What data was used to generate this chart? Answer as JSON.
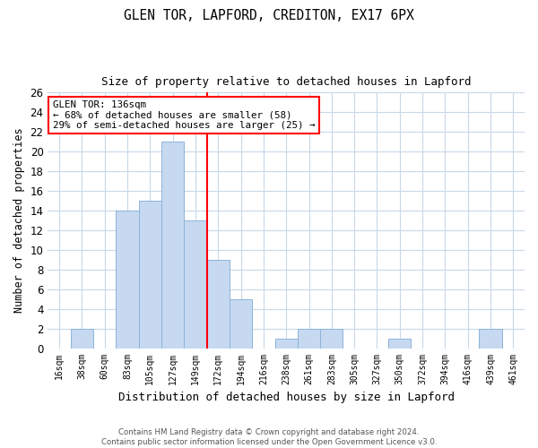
{
  "title1": "GLEN TOR, LAPFORD, CREDITON, EX17 6PX",
  "title2": "Size of property relative to detached houses in Lapford",
  "xlabel": "Distribution of detached houses by size in Lapford",
  "ylabel": "Number of detached properties",
  "bins": [
    "16sqm",
    "38sqm",
    "60sqm",
    "83sqm",
    "105sqm",
    "127sqm",
    "149sqm",
    "172sqm",
    "194sqm",
    "216sqm",
    "238sqm",
    "261sqm",
    "283sqm",
    "305sqm",
    "327sqm",
    "350sqm",
    "372sqm",
    "394sqm",
    "416sqm",
    "439sqm",
    "461sqm"
  ],
  "values": [
    0,
    2,
    0,
    14,
    15,
    21,
    13,
    9,
    5,
    0,
    1,
    2,
    2,
    0,
    0,
    1,
    0,
    0,
    0,
    2,
    0
  ],
  "bar_color": "#c6d9f1",
  "bar_edgecolor": "#8db4d9",
  "red_line_x": 6.5,
  "red_line_label": "GLEN TOR: 136sqm",
  "annotation_line1": "← 68% of detached houses are smaller (58)",
  "annotation_line2": "29% of semi-detached houses are larger (25) →",
  "annotation_box_color": "white",
  "annotation_box_edgecolor": "red",
  "ylim": [
    0,
    26
  ],
  "yticks": [
    0,
    2,
    4,
    6,
    8,
    10,
    12,
    14,
    16,
    18,
    20,
    22,
    24,
    26
  ],
  "footer1": "Contains HM Land Registry data © Crown copyright and database right 2024.",
  "footer2": "Contains public sector information licensed under the Open Government Licence v3.0.",
  "bg_color": "white",
  "grid_color": "#c8d8e8"
}
